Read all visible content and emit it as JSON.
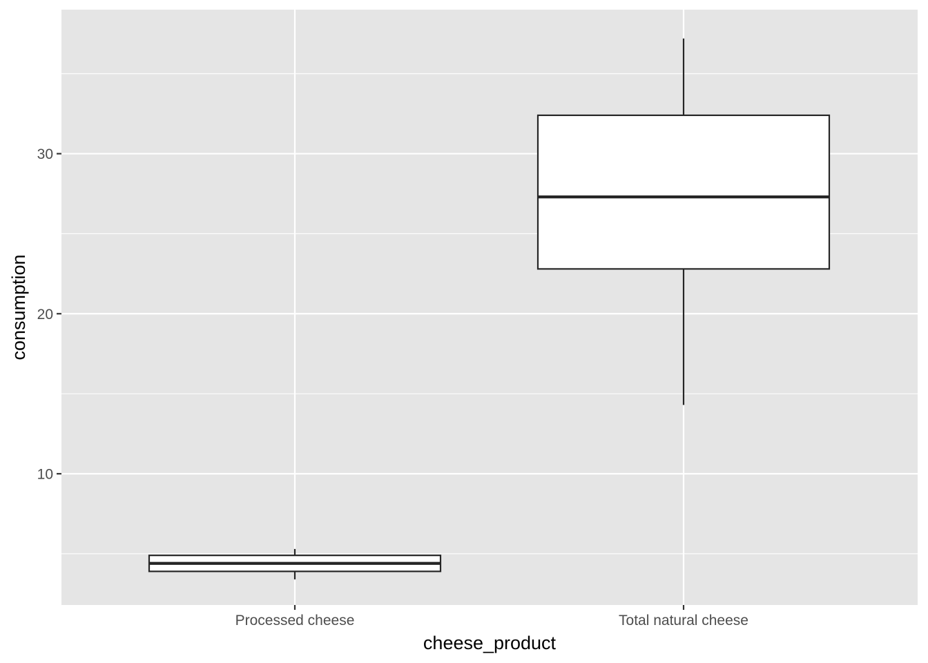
{
  "chart_data": {
    "type": "boxplot",
    "xlabel": "cheese_product",
    "ylabel": "consumption",
    "categories": [
      "Processed cheese",
      "Total natural cheese"
    ],
    "boxes": [
      {
        "category": "Processed cheese",
        "whisker_low": 3.4,
        "q1": 3.9,
        "median": 4.4,
        "q3": 4.9,
        "whisker_high": 5.3
      },
      {
        "category": "Total natural cheese",
        "whisker_low": 14.3,
        "q1": 22.8,
        "median": 27.3,
        "q3": 32.4,
        "whisker_high": 37.2
      }
    ],
    "y_ticks": [
      10,
      20,
      30
    ],
    "y_tick_labels": [
      "10",
      "20",
      "30"
    ],
    "ylim": [
      1.8,
      39.0
    ],
    "grid": true,
    "colors": {
      "panel_background": "#e5e5e5",
      "grid_line": "#ffffff",
      "box_fill": "#ffffff",
      "box_stroke": "#262626",
      "tick_mark": "#333333"
    }
  }
}
